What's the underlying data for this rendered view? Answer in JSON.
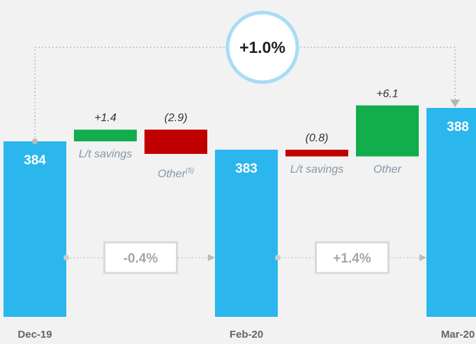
{
  "chart_data": {
    "type": "waterfall",
    "categories": [
      "Dec-19",
      "L/t savings",
      "Other",
      "Feb-20",
      "L/t savings",
      "Other",
      "Mar-20"
    ],
    "footnotes": [
      null,
      null,
      "(5)",
      null,
      null,
      null,
      null
    ],
    "kinds": [
      "total",
      "delta",
      "delta",
      "total",
      "delta",
      "delta",
      "total"
    ],
    "values": [
      384,
      1.4,
      -2.9,
      383,
      -0.8,
      6.1,
      388
    ],
    "value_labels": [
      "384",
      "+1.4",
      "(2.9)",
      "383",
      "(0.8)",
      "+6.1",
      "388"
    ],
    "colors": {
      "total": "#2bb6ee",
      "increase": "#12ad4c",
      "decrease": "#c00000"
    },
    "ylim": [
      363,
      400
    ],
    "overall_change": "+1.0%",
    "period_changes": [
      "-0.4%",
      "+1.4%"
    ]
  }
}
